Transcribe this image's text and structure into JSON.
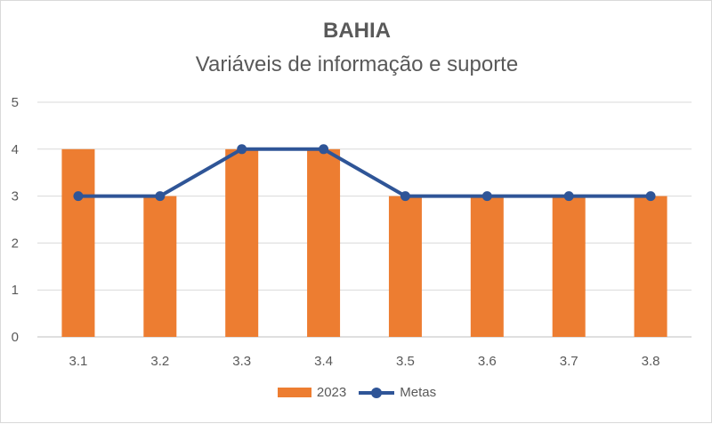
{
  "chart_data": {
    "type": "bar",
    "title": "BAHIA",
    "subtitle": "Variáveis de informação e suporte",
    "categories": [
      "3.1",
      "3.2",
      "3.3",
      "3.4",
      "3.5",
      "3.6",
      "3.7",
      "3.8"
    ],
    "series": [
      {
        "name": "2023",
        "type": "bar",
        "values": [
          4,
          3,
          4,
          4,
          3,
          3,
          3,
          3
        ],
        "color": "#ED7D31"
      },
      {
        "name": "Metas",
        "type": "line",
        "values": [
          3,
          3,
          4,
          4,
          3,
          3,
          3,
          3
        ],
        "color": "#2F5597"
      }
    ],
    "xlabel": "",
    "ylabel": "",
    "ylim": [
      0,
      5
    ],
    "yticks": [
      "0",
      "1",
      "2",
      "3",
      "4",
      "5"
    ],
    "grid": true,
    "legend_position": "bottom"
  }
}
